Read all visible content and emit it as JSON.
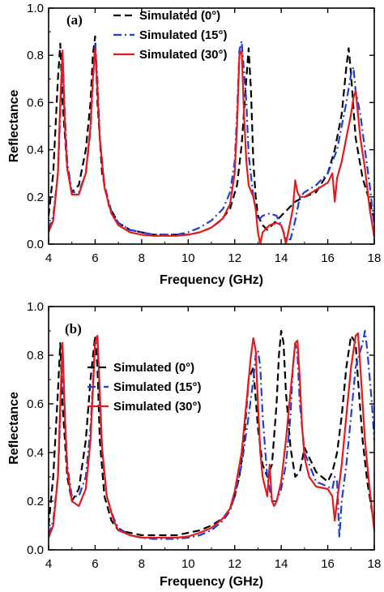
{
  "chart_data": [
    {
      "type": "line",
      "panel_label": "(a)",
      "xlabel": "Frequency (GHz)",
      "ylabel": "Reflectance",
      "xlim": [
        4,
        18
      ],
      "ylim": [
        0.0,
        1.0
      ],
      "xticks": [
        4,
        6,
        8,
        10,
        12,
        14,
        16,
        18
      ],
      "yticks": [
        0.0,
        0.2,
        0.4,
        0.6,
        0.8,
        1.0
      ],
      "legend_position": "top-center",
      "series": [
        {
          "name": "Simulated (0°)",
          "color": "#000000",
          "dash": "dash",
          "x": [
            4.0,
            4.2,
            4.4,
            4.5,
            4.6,
            4.8,
            5.0,
            5.3,
            5.6,
            5.8,
            5.9,
            6.0,
            6.1,
            6.3,
            6.6,
            7.0,
            7.5,
            8.0,
            8.5,
            9.0,
            9.5,
            10.0,
            10.5,
            11.0,
            11.4,
            11.8,
            12.1,
            12.3,
            12.5,
            12.6,
            12.7,
            12.8,
            12.9,
            13.0,
            13.2,
            13.4,
            13.6,
            13.8,
            14.0,
            14.3,
            14.6,
            15.0,
            15.5,
            16.0,
            16.3,
            16.6,
            16.8,
            16.9,
            17.0,
            17.2,
            17.5,
            17.8,
            18.0
          ],
          "y": [
            0.12,
            0.3,
            0.7,
            0.85,
            0.6,
            0.32,
            0.22,
            0.25,
            0.4,
            0.6,
            0.8,
            0.88,
            0.6,
            0.3,
            0.16,
            0.09,
            0.06,
            0.05,
            0.04,
            0.04,
            0.04,
            0.04,
            0.05,
            0.07,
            0.1,
            0.15,
            0.25,
            0.42,
            0.7,
            0.83,
            0.65,
            0.35,
            0.2,
            0.12,
            0.08,
            0.06,
            0.08,
            0.1,
            0.12,
            0.15,
            0.18,
            0.2,
            0.22,
            0.3,
            0.4,
            0.55,
            0.75,
            0.83,
            0.72,
            0.45,
            0.28,
            0.18,
            0.1
          ]
        },
        {
          "name": "Simulated (15°)",
          "color": "#1f3fd6",
          "dash": "dashdot",
          "x": [
            4.0,
            4.2,
            4.4,
            4.5,
            4.6,
            4.7,
            4.8,
            5.0,
            5.3,
            5.6,
            5.8,
            5.9,
            6.0,
            6.1,
            6.2,
            6.4,
            6.7,
            7.0,
            7.5,
            8.0,
            8.5,
            9.0,
            9.5,
            10.0,
            10.5,
            11.0,
            11.5,
            11.8,
            12.0,
            12.1,
            12.2,
            12.3,
            12.5,
            12.6,
            12.8,
            13.0,
            13.2,
            13.5,
            13.8,
            14.0,
            14.2,
            14.4,
            14.6,
            14.8,
            15.0,
            15.5,
            16.0,
            16.2,
            16.4,
            16.6,
            16.8,
            17.0,
            17.1,
            17.2,
            17.4,
            17.6,
            17.8,
            18.0
          ],
          "y": [
            0.06,
            0.12,
            0.3,
            0.55,
            0.8,
            0.55,
            0.35,
            0.22,
            0.22,
            0.3,
            0.48,
            0.68,
            0.85,
            0.7,
            0.45,
            0.25,
            0.14,
            0.09,
            0.06,
            0.05,
            0.04,
            0.04,
            0.04,
            0.05,
            0.07,
            0.1,
            0.15,
            0.22,
            0.35,
            0.55,
            0.82,
            0.86,
            0.6,
            0.38,
            0.2,
            0.1,
            0.12,
            0.13,
            0.12,
            0.08,
            0.02,
            0.02,
            0.1,
            0.2,
            0.22,
            0.25,
            0.3,
            0.35,
            0.4,
            0.5,
            0.6,
            0.72,
            0.75,
            0.65,
            0.55,
            0.4,
            0.25,
            0.08
          ]
        },
        {
          "name": "Simulated (30°)",
          "color": "#e41a1c",
          "dash": "solid",
          "x": [
            4.0,
            4.2,
            4.4,
            4.5,
            4.6,
            4.7,
            4.8,
            5.0,
            5.3,
            5.6,
            5.8,
            5.9,
            6.0,
            6.1,
            6.2,
            6.4,
            6.7,
            7.0,
            7.5,
            8.0,
            8.5,
            9.0,
            9.5,
            10.0,
            10.5,
            11.0,
            11.5,
            11.8,
            12.0,
            12.1,
            12.2,
            12.3,
            12.4,
            12.5,
            12.6,
            12.8,
            12.9,
            13.0,
            13.1,
            13.2,
            13.5,
            13.8,
            14.0,
            14.1,
            14.2,
            14.3,
            14.5,
            14.6,
            14.7,
            14.8,
            15.0,
            15.5,
            16.0,
            16.2,
            16.3,
            16.4,
            16.6,
            16.8,
            17.0,
            17.1,
            17.2,
            17.4,
            17.6,
            17.8,
            18.0
          ],
          "y": [
            0.05,
            0.1,
            0.3,
            0.6,
            0.82,
            0.5,
            0.32,
            0.21,
            0.21,
            0.3,
            0.5,
            0.7,
            0.83,
            0.65,
            0.45,
            0.24,
            0.13,
            0.08,
            0.05,
            0.04,
            0.035,
            0.035,
            0.035,
            0.04,
            0.05,
            0.07,
            0.11,
            0.17,
            0.3,
            0.5,
            0.8,
            0.82,
            0.55,
            0.35,
            0.25,
            0.2,
            0.15,
            0.05,
            0.0,
            0.05,
            0.08,
            0.09,
            0.08,
            0.05,
            0.0,
            0.05,
            0.15,
            0.27,
            0.22,
            0.2,
            0.2,
            0.23,
            0.26,
            0.3,
            0.18,
            0.28,
            0.35,
            0.45,
            0.55,
            0.62,
            0.65,
            0.45,
            0.32,
            0.15,
            0.03
          ]
        }
      ]
    },
    {
      "type": "line",
      "panel_label": "(b)",
      "xlabel": "Frequency (GHz)",
      "ylabel": "Reflectance",
      "xlim": [
        4,
        18
      ],
      "ylim": [
        0.0,
        1.0
      ],
      "xticks": [
        4,
        6,
        8,
        10,
        12,
        14,
        16,
        18
      ],
      "yticks": [
        0.0,
        0.2,
        0.4,
        0.6,
        0.8,
        1.0
      ],
      "legend_position": "center",
      "series": [
        {
          "name": "Simulated (0°)",
          "color": "#000000",
          "dash": "dash",
          "x": [
            4.0,
            4.2,
            4.4,
            4.5,
            4.6,
            4.8,
            5.0,
            5.3,
            5.6,
            5.8,
            6.0,
            6.1,
            6.2,
            6.4,
            6.7,
            7.0,
            7.5,
            8.0,
            8.5,
            9.0,
            9.5,
            10.0,
            10.5,
            11.0,
            11.5,
            11.8,
            12.0,
            12.2,
            12.4,
            12.6,
            12.8,
            13.0,
            13.2,
            13.4,
            13.6,
            13.8,
            13.9,
            14.0,
            14.1,
            14.2,
            14.4,
            14.6,
            14.8,
            15.0,
            15.5,
            16.0,
            16.2,
            16.4,
            16.6,
            16.8,
            17.0,
            17.2,
            17.3,
            17.5,
            17.7,
            18.0
          ],
          "y": [
            0.1,
            0.3,
            0.65,
            0.85,
            0.6,
            0.3,
            0.2,
            0.25,
            0.45,
            0.7,
            0.88,
            0.75,
            0.45,
            0.22,
            0.12,
            0.08,
            0.07,
            0.06,
            0.06,
            0.06,
            0.06,
            0.07,
            0.08,
            0.1,
            0.13,
            0.17,
            0.22,
            0.3,
            0.45,
            0.7,
            0.75,
            0.5,
            0.35,
            0.3,
            0.35,
            0.6,
            0.8,
            0.9,
            0.85,
            0.65,
            0.42,
            0.3,
            0.32,
            0.42,
            0.32,
            0.28,
            0.32,
            0.4,
            0.55,
            0.75,
            0.88,
            0.85,
            0.7,
            0.45,
            0.28,
            0.1
          ]
        },
        {
          "name": "Simulated (15°)",
          "color": "#1f3fd6",
          "dash": "dashdot",
          "x": [
            4.0,
            4.2,
            4.4,
            4.5,
            4.6,
            4.7,
            4.8,
            5.0,
            5.3,
            5.6,
            5.8,
            6.0,
            6.1,
            6.2,
            6.3,
            6.5,
            6.8,
            7.0,
            7.5,
            8.0,
            8.5,
            9.0,
            9.5,
            10.0,
            10.5,
            11.0,
            11.5,
            11.8,
            12.0,
            12.3,
            12.6,
            12.8,
            12.9,
            13.0,
            13.1,
            13.2,
            13.4,
            13.6,
            13.8,
            14.0,
            14.2,
            14.4,
            14.5,
            14.6,
            14.7,
            14.8,
            15.0,
            15.5,
            16.0,
            16.2,
            16.3,
            16.4,
            16.5,
            16.6,
            16.8,
            17.0,
            17.2,
            17.5,
            17.6,
            17.7,
            17.9,
            18.0
          ],
          "y": [
            0.06,
            0.12,
            0.3,
            0.55,
            0.82,
            0.55,
            0.35,
            0.22,
            0.22,
            0.3,
            0.5,
            0.85,
            0.88,
            0.6,
            0.4,
            0.22,
            0.13,
            0.09,
            0.06,
            0.05,
            0.045,
            0.045,
            0.045,
            0.05,
            0.06,
            0.08,
            0.12,
            0.16,
            0.22,
            0.35,
            0.55,
            0.7,
            0.8,
            0.82,
            0.75,
            0.55,
            0.3,
            0.2,
            0.2,
            0.25,
            0.35,
            0.55,
            0.75,
            0.85,
            0.8,
            0.6,
            0.4,
            0.28,
            0.26,
            0.25,
            0.3,
            0.28,
            0.05,
            0.2,
            0.35,
            0.55,
            0.75,
            0.85,
            0.9,
            0.82,
            0.6,
            0.45
          ]
        },
        {
          "name": "Simulated (30°)",
          "color": "#e41a1c",
          "dash": "solid",
          "x": [
            4.0,
            4.2,
            4.4,
            4.5,
            4.6,
            4.7,
            4.8,
            5.0,
            5.3,
            5.6,
            5.8,
            6.0,
            6.1,
            6.2,
            6.3,
            6.5,
            6.8,
            7.0,
            7.5,
            8.0,
            8.5,
            9.0,
            9.5,
            10.0,
            10.5,
            11.0,
            11.5,
            11.8,
            12.0,
            12.3,
            12.5,
            12.7,
            12.8,
            12.9,
            13.0,
            13.1,
            13.2,
            13.4,
            13.5,
            13.6,
            13.7,
            13.8,
            14.0,
            14.2,
            14.4,
            14.6,
            14.7,
            14.8,
            14.9,
            15.0,
            15.2,
            15.5,
            16.0,
            16.2,
            16.3,
            16.4,
            16.6,
            16.8,
            17.0,
            17.2,
            17.3,
            17.4,
            17.6,
            17.8,
            18.0
          ],
          "y": [
            0.05,
            0.1,
            0.3,
            0.6,
            0.85,
            0.55,
            0.33,
            0.2,
            0.18,
            0.25,
            0.45,
            0.85,
            0.88,
            0.65,
            0.42,
            0.22,
            0.12,
            0.08,
            0.06,
            0.05,
            0.05,
            0.05,
            0.05,
            0.055,
            0.07,
            0.09,
            0.13,
            0.17,
            0.24,
            0.4,
            0.6,
            0.8,
            0.87,
            0.82,
            0.6,
            0.4,
            0.3,
            0.22,
            0.35,
            0.2,
            0.18,
            0.2,
            0.28,
            0.45,
            0.65,
            0.85,
            0.86,
            0.7,
            0.5,
            0.38,
            0.3,
            0.26,
            0.25,
            0.22,
            0.12,
            0.2,
            0.35,
            0.55,
            0.75,
            0.88,
            0.89,
            0.75,
            0.45,
            0.25,
            0.08
          ]
        }
      ]
    }
  ]
}
